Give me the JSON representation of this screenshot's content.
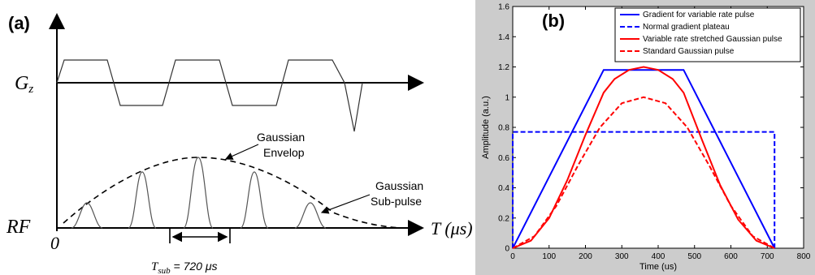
{
  "panel_a": {
    "label": "(a)",
    "gz_label": "G",
    "gz_sub": "z",
    "rf_label": "RF",
    "origin_label": "0",
    "time_axis_label": "T (",
    "time_axis_unit": "μs)",
    "gaussian_envelope_line1": "Gaussian",
    "gaussian_envelope_line2": "Envelop",
    "gaussian_subpulse_line1": "Gaussian",
    "gaussian_subpulse_line2": "Sub-pulse",
    "tsub_T": "T",
    "tsub_sub": "sub",
    "tsub_value": " = 720 μs"
  },
  "chart_data": {
    "type": "line",
    "panel_label": "(b)",
    "xlabel": "Time (us)",
    "ylabel": "Amplitude (a.u.)",
    "xlim": [
      0,
      800
    ],
    "ylim": [
      0,
      1.6
    ],
    "xticks": [
      0,
      100,
      200,
      300,
      400,
      500,
      600,
      700,
      800
    ],
    "yticks": [
      0,
      0.2,
      0.4,
      0.6,
      0.8,
      1,
      1.2,
      1.4,
      1.6
    ],
    "ytick_labels": [
      "0",
      "0.2",
      "0.4",
      "0.6",
      "0.8",
      "1",
      "1.2",
      "1.4",
      "1.6"
    ],
    "grid": false,
    "legend_position": "top-right",
    "series": [
      {
        "name": "Gradient for variable rate pulse",
        "color": "#0000ff",
        "dash": "solid",
        "x": [
          0,
          250,
          470,
          720
        ],
        "y": [
          0,
          1.18,
          1.18,
          0
        ]
      },
      {
        "name": "Normal gradient plateau",
        "color": "#0000ff",
        "dash": "dashed",
        "x": [
          0,
          0,
          720,
          720
        ],
        "y": [
          0,
          0.77,
          0.77,
          0
        ]
      },
      {
        "name": "Variable rate stretched Gaussian pulse",
        "color": "#ff0000",
        "dash": "solid",
        "x": [
          0,
          50,
          100,
          150,
          200,
          250,
          280,
          320,
          360,
          400,
          440,
          470,
          520,
          570,
          620,
          670,
          720
        ],
        "y": [
          0,
          0.05,
          0.2,
          0.45,
          0.75,
          1.03,
          1.12,
          1.18,
          1.2,
          1.18,
          1.12,
          1.03,
          0.72,
          0.42,
          0.19,
          0.05,
          0
        ]
      },
      {
        "name": "Standard Gaussian pulse",
        "color": "#ff0000",
        "dash": "dashed",
        "x": [
          0,
          60,
          120,
          180,
          240,
          300,
          360,
          420,
          480,
          540,
          600,
          660,
          720
        ],
        "y": [
          0,
          0.08,
          0.28,
          0.55,
          0.8,
          0.96,
          1.0,
          0.96,
          0.8,
          0.55,
          0.28,
          0.08,
          0
        ]
      }
    ]
  }
}
